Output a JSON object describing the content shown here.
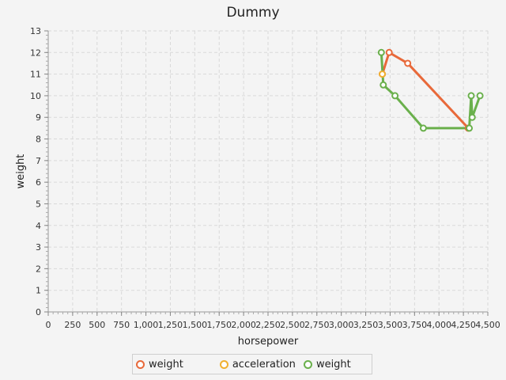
{
  "chart_data": {
    "type": "line",
    "title": "Dummy",
    "xlabel": "horsepower",
    "ylabel": "weight",
    "xlim": [
      0,
      4500
    ],
    "ylim": [
      0,
      13
    ],
    "x_ticks": [
      "0",
      "250",
      "500",
      "750",
      "1,000",
      "1,250",
      "1,500",
      "1,750",
      "2,000",
      "2,250",
      "2,500",
      "2,750",
      "3,000",
      "3,250",
      "3,500",
      "3,750",
      "4,000",
      "4,250",
      "4,500"
    ],
    "y_ticks": [
      "0",
      "1",
      "2",
      "3",
      "4",
      "5",
      "6",
      "7",
      "8",
      "9",
      "10",
      "11",
      "12",
      "13"
    ],
    "grid": true,
    "legend_position": "bottom",
    "series": [
      {
        "name": "weight",
        "color": "#e8693a",
        "points": [
          [
            3420,
            11
          ],
          [
            3490,
            12
          ],
          [
            3680,
            11.5
          ],
          [
            4300,
            8.5
          ]
        ]
      },
      {
        "name": "acceleration",
        "color": "#f0b030",
        "points": [
          [
            3420,
            11
          ]
        ]
      },
      {
        "name": "weight",
        "color": "#6ab04c",
        "points": [
          [
            3410,
            12
          ],
          [
            3430,
            10.5
          ],
          [
            3550,
            10
          ],
          [
            3840,
            8.5
          ],
          [
            4310,
            8.5
          ],
          [
            4330,
            10
          ],
          [
            4340,
            9
          ],
          [
            4420,
            10
          ]
        ]
      }
    ]
  }
}
